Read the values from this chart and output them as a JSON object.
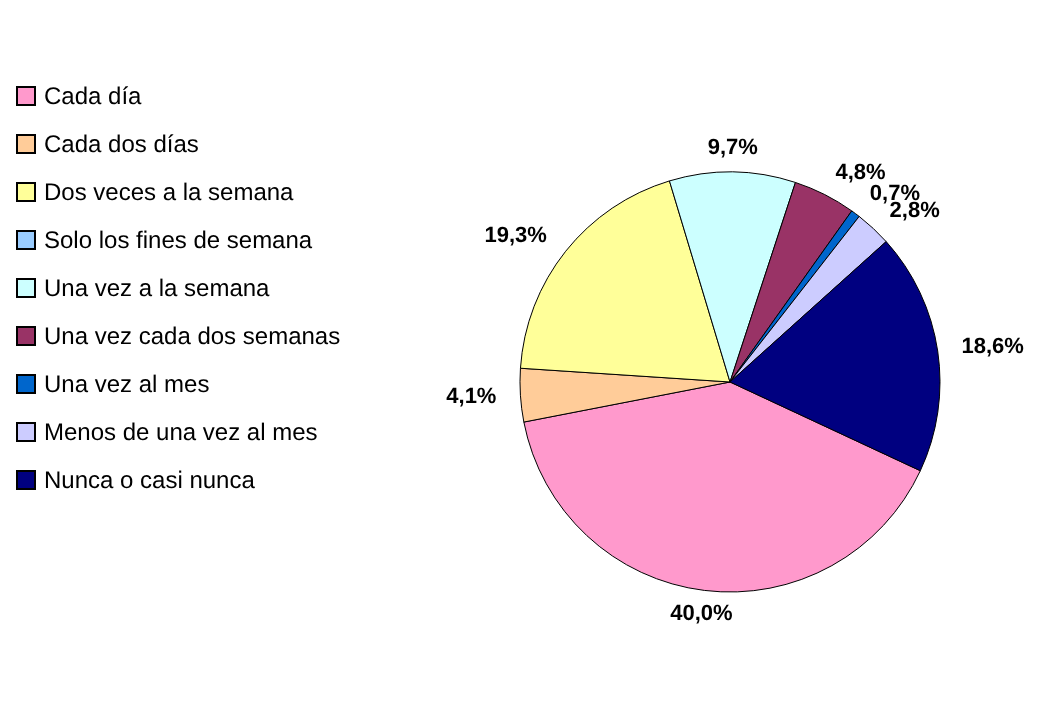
{
  "chart_data": {
    "type": "pie",
    "categories": [
      "Cada día",
      "Cada dos días",
      "Dos veces a la semana",
      "Solo los fines de semana",
      "Una vez a la semana",
      "Una vez cada dos semanas",
      "Una vez al mes",
      "Menos de una vez al mes",
      "Nunca o casi nunca"
    ],
    "values": [
      40.0,
      4.1,
      19.3,
      0,
      9.7,
      4.8,
      0.7,
      2.8,
      18.6
    ],
    "value_labels": [
      "40,0%",
      "4,1%",
      "19,3%",
      null,
      "9,7%",
      "4,8%",
      "0,7%",
      "2,8%",
      "18,6%"
    ],
    "colors": [
      "#ff99cc",
      "#ffcc99",
      "#ffff99",
      "#99ccff",
      "#ccffff",
      "#993366",
      "#0066cc",
      "#ccccff",
      "#000080"
    ],
    "legend": "left"
  }
}
